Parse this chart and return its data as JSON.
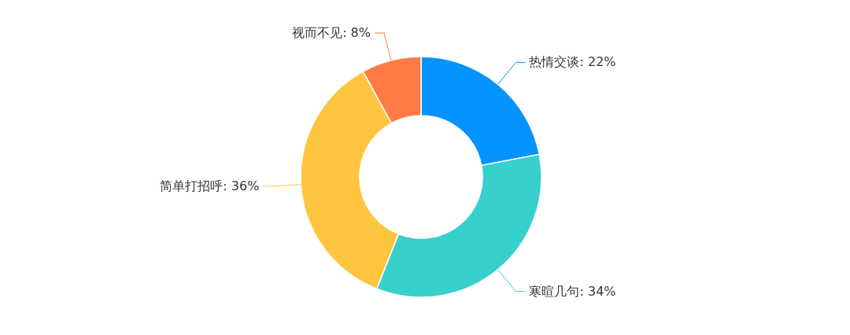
{
  "chart_data": {
    "type": "donut",
    "categories": [
      "热情交谈",
      "寒暄几句",
      "简单打招呼",
      "视而不见"
    ],
    "values": [
      22,
      34,
      36,
      8
    ],
    "colors": [
      "#0593ff",
      "#38d0cc",
      "#ffc53f",
      "#ff7a45"
    ],
    "value_labels": [
      "22%",
      "34%",
      "36%",
      "8%"
    ]
  }
}
